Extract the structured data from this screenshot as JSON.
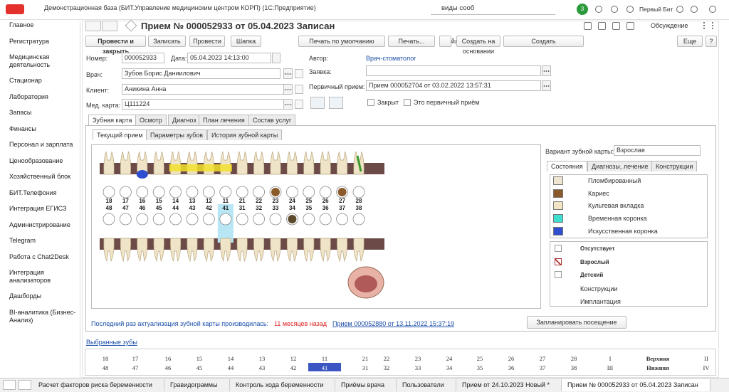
{
  "window": {
    "title": "Демонстрационная база (БИТ.Управление медицинским центром КОРП)  (1С:Предприятие)",
    "search": "виды сооб",
    "badge": "3",
    "user": "Первый Бит"
  },
  "sidebar": [
    "Главное",
    "Регистратура",
    "Медицинская деятельность",
    "Стационар",
    "Лаборатория",
    "Запасы",
    "Финансы",
    "Персонал и зарплата",
    "Ценообразование",
    "Хозяйственный блок",
    "БИТ.Телефония",
    "Интеграция ЕГИСЗ",
    "Администрирование",
    "Telegram",
    "Работа с Chat2Desk",
    "Интеграция анализаторов",
    "Дашборды",
    "BI-аналитика (Бизнес-Анализ)"
  ],
  "document": {
    "title": "Прием № 000052933 от 05.04.2023 Записан",
    "discussion": "Обсуждение",
    "toolbar": [
      "Провести и закрыть",
      "Записать",
      "Провести",
      "Шапка",
      "Печать по умолчанию",
      "Печать...",
      "Файлы",
      "Создать на основании",
      "Создать"
    ],
    "more": "Еще",
    "help": "?",
    "fields": {
      "number_label": "Номер:",
      "number": "000052933",
      "date_label": "Дата:",
      "date": "05.04.2023 14:13:00",
      "doctor_label": "Врач:",
      "doctor": "Зубов Борис Даниилович",
      "client_label": "Клиент:",
      "client": "Аникина Анна",
      "card_label": "Мед. карта:",
      "card": "Ц111224",
      "author_label": "Автор:",
      "author": "Врач-стоматолог",
      "request_label": "Заявка:",
      "primary_label": "Первичный прием:",
      "primary": "Прием 000052704 от 03.02.2022 13:57:31",
      "closed": "Закрыт",
      "is_primary": "Это первичный приём"
    },
    "tabs": [
      "Зубная карта",
      "Осмотр",
      "Диагноз",
      "План лечения",
      "Состав услуг"
    ],
    "subtabs": [
      "Текущий прием",
      "Параметры зубов",
      "История зубной карты"
    ]
  },
  "tooth_chart": {
    "upper": [
      "18",
      "17",
      "16",
      "15",
      "14",
      "13",
      "12",
      "11",
      "21",
      "22",
      "23",
      "24",
      "25",
      "26",
      "27",
      "28"
    ],
    "lower": [
      "48",
      "47",
      "46",
      "45",
      "44",
      "43",
      "42",
      "41",
      "31",
      "32",
      "33",
      "34",
      "35",
      "36",
      "37",
      "38"
    ]
  },
  "panel": {
    "variant_label": "Вариант зубной карты:",
    "variant": "Взрослая",
    "tabs": [
      "Состояния",
      "Диагнозы, лечение",
      "Конструкции"
    ],
    "states": [
      {
        "name": "Пломбированный",
        "color": "#efe6d2"
      },
      {
        "name": "Кариес",
        "color": "#8b5a2b"
      },
      {
        "name": "Культевая вкладка",
        "color": "#f2e4c4"
      },
      {
        "name": "Временная коронка",
        "color": "#3de0d0"
      },
      {
        "name": "Искусственная коронка",
        "color": "#2f4fd0"
      }
    ],
    "options": [
      "Отсутствует",
      "Взрослый",
      "Детский",
      "Конструкции",
      "Имплантация"
    ]
  },
  "footer": {
    "last_update": "Последний раз актуализация зубной карты производилась:",
    "ago": "11 месяцев назад",
    "link": "Прием 000052880 от 13.11.2022 15:37:19",
    "plan": "Запланировать посещение",
    "selected": "Выбранные зубы"
  },
  "table": {
    "rows": [
      [
        "18",
        "17",
        "16",
        "15",
        "14",
        "13",
        "12",
        "11",
        "21",
        "22",
        "23",
        "24",
        "25",
        "26",
        "27",
        "28",
        "I",
        "Верхняя",
        "II"
      ],
      [
        "48",
        "47",
        "46",
        "45",
        "44",
        "43",
        "42",
        "41",
        "31",
        "32",
        "33",
        "34",
        "35",
        "36",
        "37",
        "38",
        "III",
        "Нижняя",
        "IV"
      ]
    ]
  },
  "taskbar": [
    "Расчет факторов риска беременности",
    "Гравидограммы",
    "Контроль хода беременности",
    "Приёмы врача",
    "Пользователи",
    "Прием от 24.10.2023 Новый *",
    "Прием № 000052933 от 05.04.2023 Записан"
  ]
}
